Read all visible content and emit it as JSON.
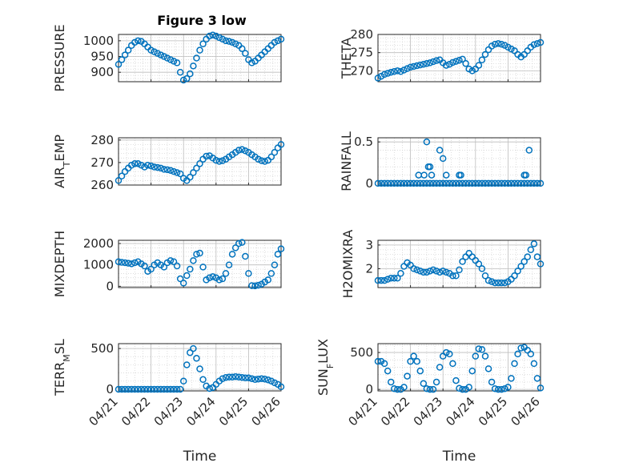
{
  "figure_title": "Figure 3 low",
  "x_axis_label": "Time",
  "date_ticks": [
    "04/21",
    "04/22",
    "04/23",
    "04/24",
    "04/25",
    "04/26"
  ],
  "colors": {
    "marker": "#0072BD",
    "grid": "#d0d0d0",
    "axis": "#262626"
  },
  "chart_data": [
    {
      "type": "scatter",
      "title": "Figure 3 low",
      "ylabel": "PRESSURE",
      "ylabel_sub": "",
      "ylim": [
        870,
        1020
      ],
      "yticks": [
        900,
        950,
        1000
      ],
      "xlim": [
        0,
        5
      ],
      "x": [
        0.0,
        0.1,
        0.2,
        0.3,
        0.4,
        0.5,
        0.6,
        0.7,
        0.8,
        0.9,
        1.0,
        1.1,
        1.2,
        1.3,
        1.4,
        1.5,
        1.6,
        1.7,
        1.8,
        1.9,
        2.0,
        2.1,
        2.2,
        2.3,
        2.4,
        2.5,
        2.6,
        2.7,
        2.8,
        2.9,
        3.0,
        3.1,
        3.2,
        3.3,
        3.4,
        3.5,
        3.6,
        3.7,
        3.8,
        3.9,
        4.0,
        4.1,
        4.2,
        4.3,
        4.4,
        4.5,
        4.6,
        4.7,
        4.8,
        4.9,
        5.0
      ],
      "y": [
        925,
        940,
        955,
        970,
        985,
        995,
        1000,
        998,
        990,
        980,
        970,
        965,
        960,
        955,
        950,
        945,
        940,
        935,
        930,
        900,
        875,
        880,
        895,
        920,
        945,
        970,
        990,
        1005,
        1015,
        1018,
        1015,
        1010,
        1005,
        1000,
        998,
        995,
        990,
        985,
        975,
        960,
        940,
        930,
        935,
        945,
        955,
        965,
        975,
        985,
        995,
        1000,
        1005
      ]
    },
    {
      "type": "scatter",
      "ylabel": "THETA",
      "ylabel_sub": "",
      "ylim": [
        267,
        280
      ],
      "yticks": [
        270,
        275,
        280
      ],
      "xlim": [
        0,
        5
      ],
      "x": [
        0.0,
        0.1,
        0.2,
        0.3,
        0.4,
        0.5,
        0.6,
        0.7,
        0.8,
        0.9,
        1.0,
        1.1,
        1.2,
        1.3,
        1.4,
        1.5,
        1.6,
        1.7,
        1.8,
        1.9,
        2.0,
        2.1,
        2.2,
        2.3,
        2.4,
        2.5,
        2.6,
        2.7,
        2.8,
        2.9,
        3.0,
        3.1,
        3.2,
        3.3,
        3.4,
        3.5,
        3.6,
        3.7,
        3.8,
        3.9,
        4.0,
        4.1,
        4.2,
        4.3,
        4.4,
        4.5,
        4.6,
        4.7,
        4.8,
        4.9,
        5.0
      ],
      "y": [
        268,
        268.5,
        269,
        269.3,
        269.6,
        269.8,
        270,
        269.8,
        270.2,
        270.6,
        271,
        271.2,
        271.4,
        271.6,
        271.8,
        272,
        272.2,
        272.5,
        272.8,
        273,
        272.2,
        271.5,
        271.8,
        272.3,
        272.6,
        272.9,
        273.2,
        272,
        270.5,
        270,
        270.5,
        271.5,
        273,
        274.5,
        275.8,
        276.8,
        277.3,
        277.5,
        277.3,
        277,
        276.5,
        276,
        275.5,
        274.5,
        273.8,
        274.5,
        275.5,
        276.5,
        277.2,
        277.5,
        277.8
      ]
    },
    {
      "type": "scatter",
      "ylabel": "AIR",
      "ylabel_sub": "T",
      "ylabel_rest": "EMP",
      "ylim": [
        260,
        281
      ],
      "yticks": [
        260,
        270,
        280
      ],
      "xlim": [
        0,
        5
      ],
      "x": [
        0.0,
        0.1,
        0.2,
        0.3,
        0.4,
        0.5,
        0.6,
        0.7,
        0.8,
        0.9,
        1.0,
        1.1,
        1.2,
        1.3,
        1.4,
        1.5,
        1.6,
        1.7,
        1.8,
        1.9,
        2.0,
        2.1,
        2.2,
        2.3,
        2.4,
        2.5,
        2.6,
        2.7,
        2.8,
        2.9,
        3.0,
        3.1,
        3.2,
        3.3,
        3.4,
        3.5,
        3.6,
        3.7,
        3.8,
        3.9,
        4.0,
        4.1,
        4.2,
        4.3,
        4.4,
        4.5,
        4.6,
        4.7,
        4.8,
        4.9,
        5.0
      ],
      "y": [
        262,
        264,
        266,
        267.5,
        268.8,
        269.5,
        269.5,
        268.8,
        268,
        268.8,
        268.5,
        268,
        267.8,
        267.5,
        267,
        266.8,
        266.5,
        266,
        265.5,
        265,
        263,
        262,
        263.5,
        265.5,
        267.5,
        269.5,
        271.5,
        272.8,
        273,
        272,
        271,
        270.5,
        270.8,
        271.5,
        272.5,
        273.5,
        274.5,
        275.5,
        275.8,
        275.2,
        274.5,
        273.5,
        272.5,
        271.5,
        270.8,
        270.5,
        271,
        272.5,
        274.5,
        276.5,
        278
      ]
    },
    {
      "type": "scatter",
      "ylabel": "RAINFALL",
      "ylabel_sub": "",
      "ylim": [
        -0.02,
        0.55
      ],
      "yticks": [
        0,
        0.5
      ],
      "ytick_labels": [
        "0",
        "0.5"
      ],
      "xlim": [
        0,
        5
      ],
      "x": [
        0.0,
        0.1,
        0.2,
        0.3,
        0.4,
        0.5,
        0.6,
        0.7,
        0.8,
        0.9,
        1.0,
        1.1,
        1.2,
        1.3,
        1.4,
        1.5,
        1.6,
        1.7,
        1.8,
        1.9,
        2.0,
        2.1,
        2.2,
        2.3,
        2.4,
        2.5,
        2.6,
        2.7,
        2.8,
        2.9,
        3.0,
        3.1,
        3.2,
        3.3,
        3.4,
        3.5,
        3.6,
        3.7,
        3.8,
        3.9,
        4.0,
        4.1,
        4.2,
        4.3,
        4.4,
        4.5,
        4.6,
        4.7,
        4.8,
        4.9,
        5.0,
        1.25,
        1.42,
        1.5,
        1.55,
        1.6,
        1.65,
        1.9,
        2.0,
        2.1,
        2.5,
        2.55,
        4.5,
        4.55,
        4.65
      ],
      "y": [
        0,
        0,
        0,
        0,
        0,
        0,
        0,
        0,
        0,
        0,
        0,
        0,
        0,
        0,
        0,
        0,
        0,
        0,
        0,
        0,
        0,
        0,
        0,
        0,
        0,
        0,
        0,
        0,
        0,
        0,
        0,
        0,
        0,
        0,
        0,
        0,
        0,
        0,
        0,
        0,
        0,
        0,
        0,
        0,
        0,
        0,
        0,
        0,
        0,
        0,
        0,
        0.1,
        0.1,
        0.5,
        0.2,
        0.2,
        0.1,
        0.4,
        0.3,
        0.1,
        0.1,
        0.1,
        0.1,
        0.1,
        0.4
      ]
    },
    {
      "type": "scatter",
      "ylabel": "MIXDEPTH",
      "ylabel_sub": "",
      "ylim": [
        -60,
        2150
      ],
      "yticks": [
        0,
        1000,
        2000
      ],
      "xlim": [
        0,
        5
      ],
      "x": [
        0.0,
        0.1,
        0.2,
        0.3,
        0.4,
        0.5,
        0.6,
        0.7,
        0.8,
        0.9,
        1.0,
        1.1,
        1.2,
        1.3,
        1.4,
        1.5,
        1.6,
        1.7,
        1.8,
        1.9,
        2.0,
        2.1,
        2.2,
        2.3,
        2.4,
        2.5,
        2.6,
        2.7,
        2.8,
        2.9,
        3.0,
        3.1,
        3.2,
        3.3,
        3.4,
        3.5,
        3.6,
        3.7,
        3.8,
        3.9,
        4.0,
        4.1,
        4.2,
        4.3,
        4.4,
        4.5,
        4.6,
        4.7,
        4.8,
        4.9,
        5.0
      ],
      "y": [
        1150,
        1120,
        1100,
        1080,
        1050,
        1100,
        1150,
        1050,
        950,
        700,
        800,
        1000,
        1100,
        1000,
        900,
        1100,
        1200,
        1150,
        950,
        350,
        150,
        500,
        800,
        1200,
        1500,
        1550,
        900,
        300,
        400,
        450,
        400,
        300,
        350,
        600,
        1000,
        1500,
        1800,
        2000,
        2050,
        1400,
        600,
        30,
        20,
        50,
        100,
        200,
        300,
        600,
        1000,
        1500,
        1750
      ]
    },
    {
      "type": "scatter",
      "ylabel": "H2OMIXRA",
      "ylabel_sub": "",
      "ylim": [
        1.2,
        3.2
      ],
      "yticks": [
        2,
        3
      ],
      "xlim": [
        0,
        5
      ],
      "x": [
        0.0,
        0.1,
        0.2,
        0.3,
        0.4,
        0.5,
        0.6,
        0.7,
        0.8,
        0.9,
        1.0,
        1.1,
        1.2,
        1.3,
        1.4,
        1.5,
        1.6,
        1.7,
        1.8,
        1.9,
        2.0,
        2.1,
        2.2,
        2.3,
        2.4,
        2.5,
        2.6,
        2.7,
        2.8,
        2.9,
        3.0,
        3.1,
        3.2,
        3.3,
        3.4,
        3.5,
        3.6,
        3.7,
        3.8,
        3.9,
        4.0,
        4.1,
        4.2,
        4.3,
        4.4,
        4.5,
        4.6,
        4.7,
        4.8,
        4.9,
        5.0
      ],
      "y": [
        1.5,
        1.5,
        1.5,
        1.55,
        1.6,
        1.6,
        1.6,
        1.8,
        2.1,
        2.25,
        2.15,
        2.0,
        1.95,
        1.9,
        1.85,
        1.85,
        1.9,
        1.95,
        1.9,
        1.85,
        1.9,
        1.85,
        1.8,
        1.7,
        1.7,
        1.95,
        2.3,
        2.5,
        2.65,
        2.5,
        2.35,
        2.2,
        2.0,
        1.7,
        1.5,
        1.45,
        1.4,
        1.4,
        1.4,
        1.4,
        1.45,
        1.55,
        1.7,
        1.9,
        2.1,
        2.3,
        2.5,
        2.8,
        3.05,
        2.5,
        2.2
      ]
    },
    {
      "type": "scatter",
      "ylabel": "TERR",
      "ylabel_sub": "M",
      "ylabel_rest": "SL",
      "ylim": [
        -20,
        560
      ],
      "yticks": [
        0,
        500
      ],
      "xlim": [
        0,
        5
      ],
      "x": [
        0.0,
        0.1,
        0.2,
        0.3,
        0.4,
        0.5,
        0.6,
        0.7,
        0.8,
        0.9,
        1.0,
        1.1,
        1.2,
        1.3,
        1.4,
        1.5,
        1.6,
        1.7,
        1.8,
        1.9,
        2.0,
        2.1,
        2.2,
        2.3,
        2.4,
        2.5,
        2.6,
        2.7,
        2.8,
        2.9,
        3.0,
        3.1,
        3.2,
        3.3,
        3.4,
        3.5,
        3.6,
        3.7,
        3.8,
        3.9,
        4.0,
        4.1,
        4.2,
        4.3,
        4.4,
        4.5,
        4.6,
        4.7,
        4.8,
        4.9,
        5.0
      ],
      "y": [
        0,
        0,
        0,
        0,
        0,
        0,
        0,
        0,
        0,
        0,
        0,
        0,
        0,
        0,
        0,
        0,
        0,
        0,
        0,
        0,
        100,
        300,
        450,
        500,
        380,
        250,
        120,
        40,
        10,
        20,
        60,
        100,
        130,
        145,
        150,
        150,
        155,
        150,
        145,
        140,
        140,
        130,
        120,
        125,
        130,
        125,
        115,
        100,
        80,
        60,
        30
      ]
    },
    {
      "type": "scatter",
      "ylabel": "SUN",
      "ylabel_sub": "F",
      "ylabel_rest": "LUX",
      "ylim": [
        -20,
        620
      ],
      "yticks": [
        0,
        500
      ],
      "xlim": [
        0,
        5
      ],
      "x": [
        0.0,
        0.1,
        0.2,
        0.3,
        0.4,
        0.5,
        0.6,
        0.7,
        0.8,
        0.9,
        1.0,
        1.1,
        1.2,
        1.3,
        1.4,
        1.5,
        1.6,
        1.7,
        1.8,
        1.9,
        2.0,
        2.1,
        2.2,
        2.3,
        2.4,
        2.5,
        2.6,
        2.7,
        2.8,
        2.9,
        3.0,
        3.1,
        3.2,
        3.3,
        3.4,
        3.5,
        3.6,
        3.7,
        3.8,
        3.9,
        4.0,
        4.1,
        4.2,
        4.3,
        4.4,
        4.5,
        4.6,
        4.7,
        4.8,
        4.9,
        5.0
      ],
      "y": [
        380,
        380,
        350,
        250,
        100,
        10,
        0,
        0,
        30,
        180,
        380,
        450,
        380,
        250,
        80,
        10,
        0,
        0,
        100,
        300,
        450,
        500,
        480,
        350,
        120,
        15,
        0,
        0,
        30,
        250,
        450,
        550,
        540,
        450,
        280,
        100,
        10,
        0,
        0,
        10,
        30,
        150,
        350,
        480,
        560,
        570,
        530,
        480,
        350,
        150,
        20
      ]
    }
  ]
}
